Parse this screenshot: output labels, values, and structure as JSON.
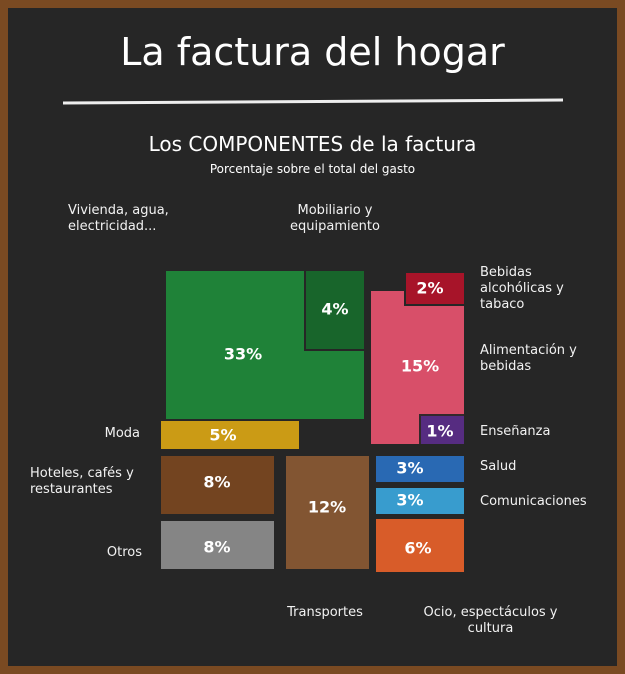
{
  "chart_data": {
    "type": "treemap",
    "title": "La factura del hogar",
    "subtitle": "Los COMPONENTES de la factura",
    "caption": "Porcentaje sobre el total del gasto",
    "categories": [
      "Vivienda, agua, electricidad...",
      "Mobiliario y equipamiento",
      "Bebidas alcohólicas y tabaco",
      "Alimentación y bebidas",
      "Moda",
      "Enseñanza",
      "Hoteles, cafés y restaurantes",
      "Salud",
      "Transportes",
      "Comunicaciones",
      "Otros",
      "Ocio, espectáculos y cultura"
    ],
    "values": [
      33,
      4,
      2,
      15,
      5,
      1,
      8,
      3,
      12,
      3,
      8,
      6
    ],
    "value_labels": [
      "33%",
      "4%",
      "2%",
      "15%",
      "5%",
      "1%",
      "8%",
      "3%",
      "12%",
      "3%",
      "8%",
      "6%"
    ],
    "colors": [
      "#1f8a3a",
      "#176b2c",
      "#b3132a",
      "#e8536f",
      "#d9a514",
      "#4b2a84",
      "#7a4720",
      "#2a6fbf",
      "#8a5a34",
      "#3aa6dd",
      "#8e8e8e",
      "#e8612a"
    ]
  }
}
